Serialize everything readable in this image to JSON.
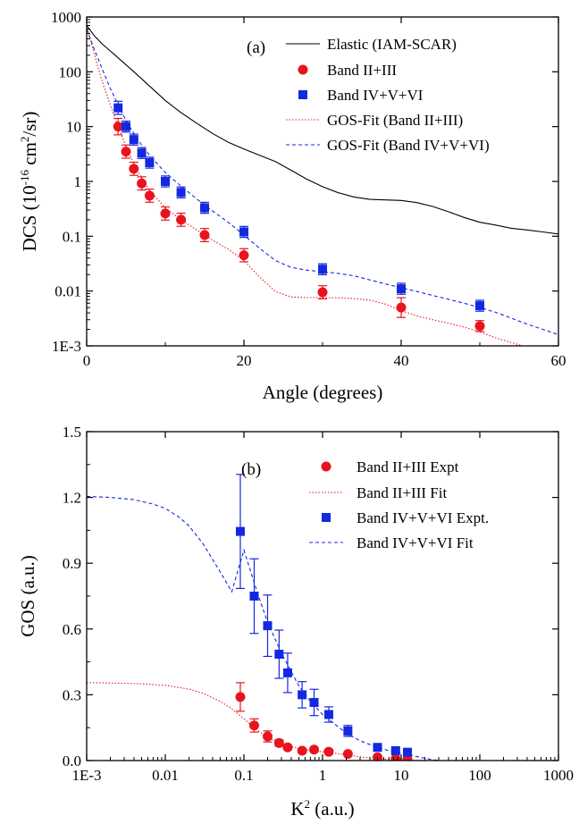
{
  "chart_data": [
    {
      "type": "scatter",
      "panel_label": "(a)",
      "xlabel": "Angle (degrees)",
      "ylabel_main": "DCS (10",
      "ylabel_exp": "-16",
      "ylabel_mid": " cm",
      "ylabel_exp2": "2",
      "ylabel_end": "/sr)",
      "xlim": [
        0,
        60
      ],
      "ylim": [
        0.001,
        1000
      ],
      "yscale": "log",
      "x_ticks": [
        0,
        20,
        40,
        60
      ],
      "x_tick_labels": [
        "0",
        "20",
        "40",
        "60"
      ],
      "y_ticks": [
        0.001,
        0.01,
        0.1,
        1,
        10,
        100,
        1000
      ],
      "y_tick_labels": [
        "1E-3",
        "0.01",
        "0.1",
        "1",
        "10",
        "100",
        "1000"
      ],
      "legend_position": "top-right",
      "series": [
        {
          "name": "Elastic (IAM-SCAR)",
          "kind": "line",
          "color": "#000000",
          "dash": "solid",
          "x": [
            0,
            1,
            2,
            3,
            4,
            6,
            8,
            10,
            12,
            14,
            16,
            18,
            20,
            22,
            24,
            26,
            28,
            30,
            32,
            34,
            36,
            38,
            40,
            42,
            44,
            46,
            48,
            50,
            52,
            54,
            56,
            58,
            60
          ],
          "y": [
            700,
            450,
            320,
            240,
            180,
            100,
            55,
            30,
            18,
            11.5,
            7.5,
            5.2,
            3.9,
            3.0,
            2.3,
            1.6,
            1.1,
            0.8,
            0.62,
            0.52,
            0.47,
            0.46,
            0.45,
            0.41,
            0.35,
            0.28,
            0.22,
            0.18,
            0.16,
            0.14,
            0.13,
            0.12,
            0.11
          ]
        },
        {
          "name": "Band II+III",
          "kind": "points",
          "marker": "circle",
          "color": "#e8141d",
          "x": [
            4,
            5,
            6,
            7,
            8,
            10,
            12,
            15,
            20,
            30,
            40,
            50
          ],
          "y": [
            10,
            3.5,
            1.7,
            0.92,
            0.55,
            0.26,
            0.2,
            0.105,
            0.045,
            0.0095,
            0.005,
            0.0023
          ],
          "err": [
            0.15,
            0.12,
            0.12,
            0.12,
            0.12,
            0.12,
            0.12,
            0.12,
            0.12,
            0.12,
            0.18,
            0.1
          ]
        },
        {
          "name": "Band IV+V+VI",
          "kind": "points",
          "marker": "square",
          "color": "#1428e0",
          "x": [
            4,
            5,
            6,
            7,
            8,
            10,
            12,
            15,
            20,
            30,
            40,
            50
          ],
          "y": [
            22,
            10,
            5.8,
            3.3,
            2.2,
            1.0,
            0.63,
            0.33,
            0.12,
            0.025,
            0.011,
            0.0054
          ],
          "err": [
            0.12,
            0.1,
            0.1,
            0.1,
            0.1,
            0.1,
            0.1,
            0.1,
            0.1,
            0.1,
            0.1,
            0.1
          ]
        },
        {
          "name": "GOS-Fit (Band II+III)",
          "kind": "line",
          "color": "#e8141d",
          "dash": "dot",
          "x": [
            0,
            1,
            2,
            3,
            4,
            5,
            6,
            7,
            8,
            10,
            12,
            14,
            16,
            18,
            20,
            22,
            24,
            26,
            28,
            30,
            32,
            34,
            36,
            38,
            40,
            42,
            44,
            46,
            48,
            50,
            52,
            54,
            56
          ],
          "y": [
            700,
            200,
            65,
            25,
            10,
            4.4,
            2.1,
            1.15,
            0.68,
            0.33,
            0.2,
            0.13,
            0.085,
            0.058,
            0.036,
            0.018,
            0.0098,
            0.0078,
            0.0076,
            0.0076,
            0.0075,
            0.0073,
            0.0068,
            0.0058,
            0.0044,
            0.0035,
            0.003,
            0.0026,
            0.0022,
            0.0018,
            0.0014,
            0.00115,
            0.00095
          ]
        },
        {
          "name": "GOS-Fit (Band IV+V+VI)",
          "kind": "line",
          "color": "#1428e0",
          "dash": "dash",
          "x": [
            0,
            1,
            2,
            3,
            4,
            5,
            6,
            7,
            8,
            10,
            12,
            14,
            16,
            18,
            20,
            22,
            24,
            26,
            28,
            30,
            32,
            34,
            36,
            38,
            40,
            42,
            44,
            46,
            48,
            50,
            52,
            54,
            56,
            58,
            60
          ],
          "y": [
            600,
            250,
            110,
            50,
            25,
            13,
            7.5,
            4.6,
            3.0,
            1.45,
            0.82,
            0.48,
            0.29,
            0.18,
            0.105,
            0.06,
            0.036,
            0.027,
            0.024,
            0.0225,
            0.021,
            0.019,
            0.016,
            0.0135,
            0.0115,
            0.0098,
            0.0083,
            0.0071,
            0.006,
            0.005,
            0.0041,
            0.0032,
            0.0025,
            0.002,
            0.0016
          ]
        }
      ]
    },
    {
      "type": "scatter",
      "panel_label": "(b)",
      "xlabel_main": "K",
      "xlabel_exp": "2",
      "xlabel_end": " (a.u.)",
      "ylabel": "GOS (a.u.)",
      "xscale": "log",
      "xlim": [
        0.001,
        1000
      ],
      "ylim": [
        0,
        1.5
      ],
      "x_ticks": [
        0.001,
        0.01,
        0.1,
        1,
        10,
        100,
        1000
      ],
      "x_tick_labels": [
        "1E-3",
        "0.01",
        "0.1",
        "1",
        "10",
        "100",
        "1000"
      ],
      "y_ticks": [
        0,
        0.3,
        0.6,
        0.9,
        1.2,
        1.5
      ],
      "y_tick_labels": [
        "0.0",
        "0.3",
        "0.6",
        "0.9",
        "1.2",
        "1.5"
      ],
      "legend_position": "top-right",
      "series": [
        {
          "name": "Band II+III Expt",
          "kind": "points",
          "marker": "circle",
          "color": "#e8141d",
          "x": [
            0.09,
            0.135,
            0.2,
            0.28,
            0.36,
            0.55,
            0.78,
            1.2,
            2.1,
            5.0,
            8.5,
            12
          ],
          "y": [
            0.29,
            0.16,
            0.11,
            0.08,
            0.06,
            0.045,
            0.05,
            0.04,
            0.03,
            0.015,
            0.008,
            0.006
          ],
          "err": [
            0.065,
            0.03,
            0.025,
            0.015,
            0.01,
            0.01,
            0.01,
            0.01,
            0.005,
            0.005,
            0.004,
            0.003
          ]
        },
        {
          "name": "Band II+III Fit",
          "kind": "line",
          "color": "#e8141d",
          "dash": "dot",
          "x": [
            0.001,
            0.002,
            0.005,
            0.01,
            0.02,
            0.03,
            0.05,
            0.07,
            0.1,
            0.15,
            0.2,
            0.3,
            0.5,
            0.7,
            1,
            1.5,
            2,
            3,
            5,
            7,
            10,
            15,
            20
          ],
          "y": [
            0.355,
            0.354,
            0.35,
            0.343,
            0.326,
            0.307,
            0.27,
            0.236,
            0.19,
            0.137,
            0.105,
            0.075,
            0.055,
            0.047,
            0.04,
            0.032,
            0.026,
            0.017,
            0.009,
            0.005,
            0.003,
            0.001,
            0.0
          ]
        },
        {
          "name": "Band IV+V+VI Expt.",
          "kind": "points",
          "marker": "square",
          "color": "#1428e0",
          "x": [
            0.09,
            0.135,
            0.2,
            0.28,
            0.36,
            0.55,
            0.78,
            1.2,
            2.1,
            5.0,
            8.5,
            12
          ],
          "y": [
            1.045,
            0.75,
            0.615,
            0.485,
            0.4,
            0.3,
            0.265,
            0.21,
            0.135,
            0.06,
            0.045,
            0.038
          ],
          "err": [
            0.26,
            0.17,
            0.14,
            0.11,
            0.09,
            0.06,
            0.06,
            0.035,
            0.025,
            0.01,
            0.01,
            0.008
          ]
        },
        {
          "name": "Band IV+V+VI Fit",
          "kind": "line",
          "color": "#1428e0",
          "dash": "dash",
          "x": [
            0.001,
            0.002,
            0.004,
            0.007,
            0.01,
            0.015,
            0.02,
            0.03,
            0.05,
            0.07,
            0.1,
            0.15,
            0.2,
            0.3,
            0.5,
            0.7,
            1,
            1.5,
            2,
            3,
            5,
            7,
            10,
            15,
            20,
            25,
            30
          ],
          "y": [
            1.205,
            1.2,
            1.19,
            1.17,
            1.15,
            1.11,
            1.07,
            0.99,
            0.86,
            0.77,
            0.96,
            0.76,
            0.63,
            0.49,
            0.34,
            0.27,
            0.21,
            0.16,
            0.125,
            0.09,
            0.06,
            0.045,
            0.035,
            0.02,
            0.01,
            0.004,
            0.0
          ]
        }
      ]
    }
  ]
}
